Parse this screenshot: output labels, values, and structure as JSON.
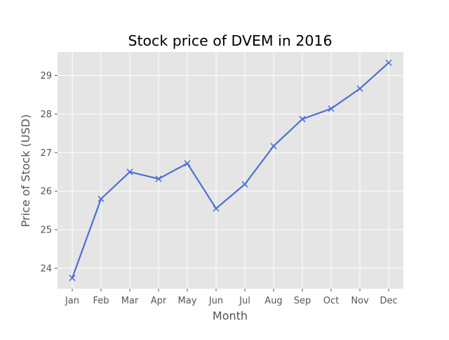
{
  "chart_data": {
    "type": "line",
    "title": "Stock price of DVEM in 2016",
    "xlabel": "Month",
    "ylabel": "Price of Stock (USD)",
    "categories": [
      "Jan",
      "Feb",
      "Mar",
      "Apr",
      "May",
      "Jun",
      "Jul",
      "Aug",
      "Sep",
      "Oct",
      "Nov",
      "Dec"
    ],
    "series": [
      {
        "values": [
          23.75,
          25.8,
          26.5,
          26.32,
          26.72,
          25.55,
          26.18,
          27.17,
          27.87,
          28.14,
          28.66,
          29.33
        ],
        "color": "#4c6fd4",
        "marker": "x"
      }
    ],
    "yticks": [
      24,
      25,
      26,
      27,
      28,
      29
    ],
    "ylim": [
      23.47,
      29.61
    ],
    "grid": true,
    "legend": "none",
    "colors": {
      "plot_background": "#e5e5e5",
      "grid": "#ffffff",
      "text": "#555555",
      "title": "#000000"
    }
  }
}
